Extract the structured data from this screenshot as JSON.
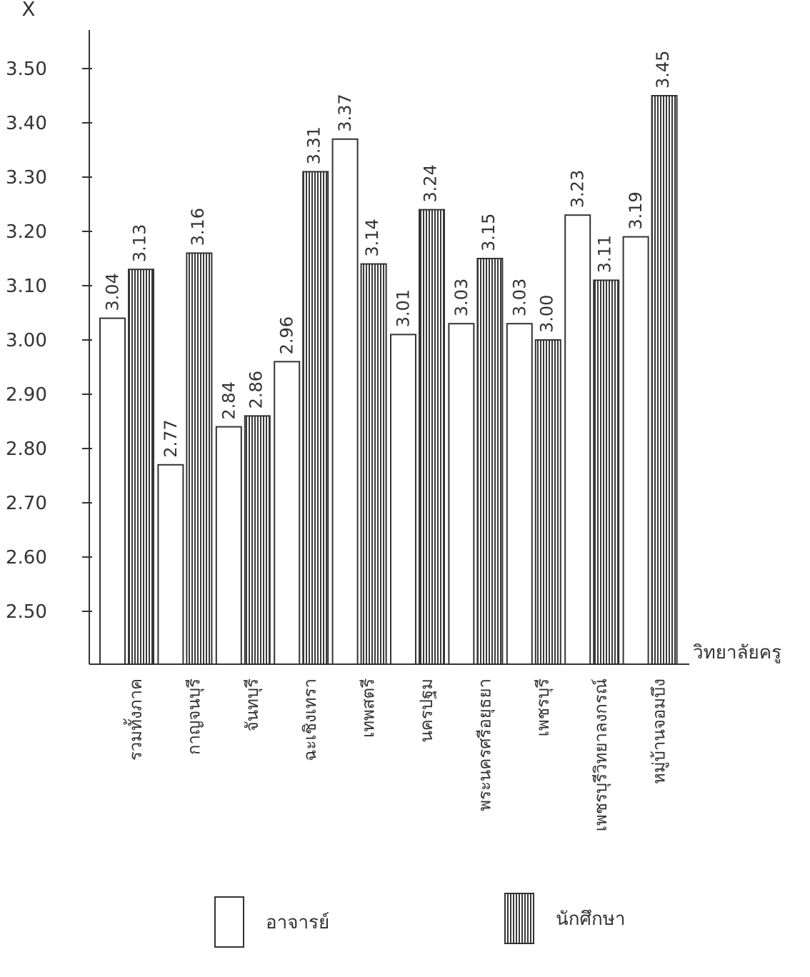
{
  "chart_data": {
    "type": "bar",
    "ylabel": "X̄",
    "xlabel": "วิทยาลัยครู",
    "ylim": [
      2.4,
      3.6
    ],
    "yticks": [
      "2.50",
      "2.60",
      "2.70",
      "2.80",
      "2.90",
      "3.00",
      "3.10",
      "3.20",
      "3.30",
      "3.40",
      "3.50"
    ],
    "categories": [
      "รวมทั้งภาค",
      "กาญจนบุรี",
      "จันทบุรี",
      "ฉะเชิงเทรา",
      "เทพสตรี",
      "นครปฐม",
      "พระนครศรีอยุธยา",
      "เพชรบุรี",
      "เพชรบุรีวิทยาลงกรณ์",
      "หมู่บ้านจอมบึง"
    ],
    "series": [
      {
        "name": "อาจารย์",
        "pattern": "blank",
        "values": [
          3.04,
          2.77,
          2.84,
          2.96,
          3.37,
          3.01,
          3.03,
          3.03,
          3.23,
          3.19
        ],
        "labels": [
          "3.04",
          "2.77",
          "2.84",
          "2.96",
          "3.37",
          "3.01",
          "3.03",
          "3.03",
          "3.23",
          "3.19"
        ]
      },
      {
        "name": "นักศึกษา",
        "pattern": "vertical-hatch",
        "values": [
          3.13,
          3.16,
          2.86,
          3.31,
          3.14,
          3.24,
          3.15,
          3.0,
          3.11,
          3.45
        ],
        "labels": [
          "3.13",
          "3.16",
          "2.86",
          "3.31",
          "3.14",
          "3.24",
          "3.15",
          "3.00",
          "3.11",
          "3.45"
        ]
      }
    ],
    "grid": false,
    "legend": "bottom"
  },
  "colors": {
    "ink": "#333333",
    "paper": "#ffffff"
  }
}
